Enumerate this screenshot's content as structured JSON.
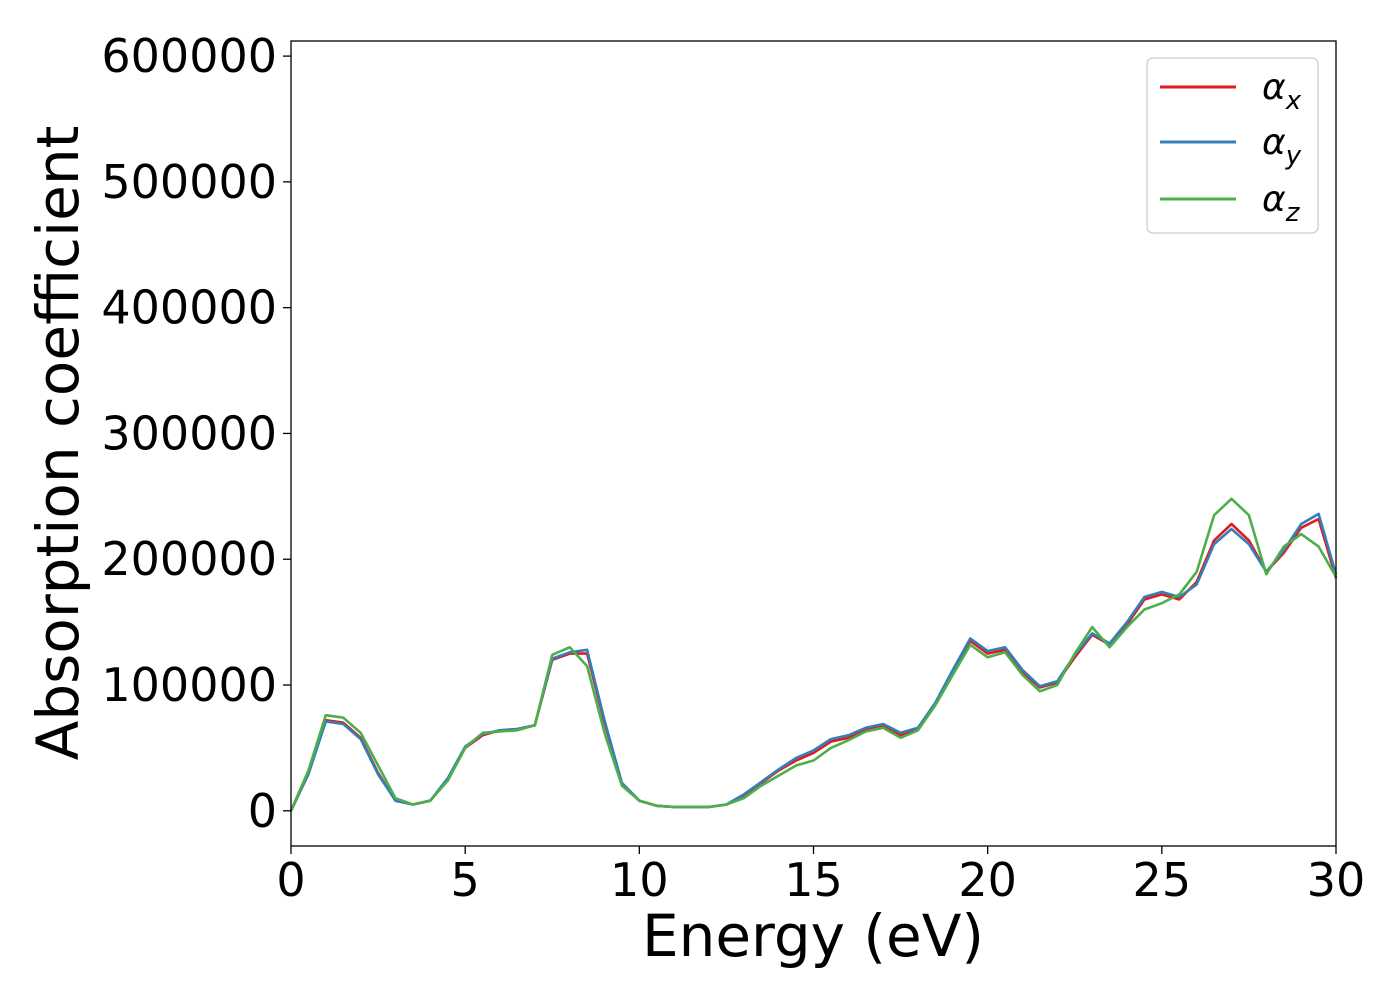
{
  "chart_data": {
    "type": "line",
    "xlabel": "Energy (eV)",
    "ylabel": "Absorption coefficient",
    "xlim": [
      0,
      30
    ],
    "ylim": [
      -28000,
      612000
    ],
    "x_ticks": [
      "0",
      "5",
      "10",
      "15",
      "20",
      "25",
      "30"
    ],
    "y_ticks": [
      "0",
      "100000",
      "200000",
      "300000",
      "400000",
      "500000",
      "600000"
    ],
    "grid": false,
    "legend": "top-right",
    "series": [
      {
        "name": "αx",
        "color": "#e41a1c",
        "x": [
          0,
          0.5,
          1.0,
          1.5,
          2.0,
          2.5,
          3.0,
          3.5,
          4.0,
          4.5,
          5.0,
          5.5,
          6.0,
          6.5,
          7.0,
          7.5,
          8.0,
          8.5,
          9.0,
          9.5,
          10.0,
          10.5,
          11.0,
          11.5,
          12.0,
          12.5,
          13.0,
          13.5,
          14.0,
          14.5,
          15.0,
          15.5,
          16.0,
          16.5,
          17.0,
          17.5,
          18.0,
          18.5,
          19.0,
          19.5,
          20.0,
          20.5,
          21.0,
          21.5,
          22.0,
          22.5,
          23.0,
          23.5,
          24.0,
          24.5,
          25.0,
          25.5,
          26.0,
          26.5,
          27.0,
          27.5,
          28.0,
          28.5,
          29.0,
          29.5,
          30.0
        ],
        "y": [
          0,
          30000,
          72000,
          70000,
          58000,
          30000,
          8000,
          5000,
          8000,
          25000,
          50000,
          60000,
          64000,
          65000,
          68000,
          120000,
          125000,
          125000,
          70000,
          22000,
          8000,
          4000,
          3000,
          3000,
          3000,
          5000,
          12000,
          22000,
          32000,
          40000,
          46000,
          55000,
          58000,
          65000,
          68000,
          60000,
          65000,
          85000,
          110000,
          135000,
          125000,
          128000,
          110000,
          98000,
          102000,
          122000,
          140000,
          132000,
          148000,
          168000,
          172000,
          168000,
          182000,
          215000,
          228000,
          215000,
          190000,
          205000,
          225000,
          232000,
          185000
        ]
      },
      {
        "name": "αy",
        "color": "#377eb8",
        "x": [
          0,
          0.5,
          1.0,
          1.5,
          2.0,
          2.5,
          3.0,
          3.5,
          4.0,
          4.5,
          5.0,
          5.5,
          6.0,
          6.5,
          7.0,
          7.5,
          8.0,
          8.5,
          9.0,
          9.5,
          10.0,
          10.5,
          11.0,
          11.5,
          12.0,
          12.5,
          13.0,
          13.5,
          14.0,
          14.5,
          15.0,
          15.5,
          16.0,
          16.5,
          17.0,
          17.5,
          18.0,
          18.5,
          19.0,
          19.5,
          20.0,
          20.5,
          21.0,
          21.5,
          22.0,
          22.5,
          23.0,
          23.5,
          24.0,
          24.5,
          25.0,
          25.5,
          26.0,
          26.5,
          27.0,
          27.5,
          28.0,
          28.5,
          29.0,
          29.5,
          30.0
        ],
        "y": [
          0,
          29000,
          71000,
          69000,
          57000,
          29000,
          8000,
          5000,
          8000,
          26000,
          51000,
          61000,
          64000,
          65000,
          68000,
          121000,
          126000,
          128000,
          72000,
          22000,
          8000,
          4000,
          3000,
          3000,
          3000,
          5000,
          13000,
          23000,
          33000,
          42000,
          48000,
          57000,
          60000,
          66000,
          69000,
          62000,
          66000,
          86000,
          112000,
          137000,
          127000,
          130000,
          112000,
          99000,
          103000,
          124000,
          141000,
          133000,
          150000,
          170000,
          174000,
          170000,
          180000,
          212000,
          224000,
          212000,
          190000,
          207000,
          228000,
          236000,
          188000
        ]
      },
      {
        "name": "αz",
        "color": "#4daf4a",
        "x": [
          0,
          0.5,
          1.0,
          1.5,
          2.0,
          2.5,
          3.0,
          3.5,
          4.0,
          4.5,
          5.0,
          5.5,
          6.0,
          6.5,
          7.0,
          7.5,
          8.0,
          8.5,
          9.0,
          9.5,
          10.0,
          10.5,
          11.0,
          11.5,
          12.0,
          12.5,
          13.0,
          13.5,
          14.0,
          14.5,
          15.0,
          15.5,
          16.0,
          16.5,
          17.0,
          17.5,
          18.0,
          18.5,
          19.0,
          19.5,
          20.0,
          20.5,
          21.0,
          21.5,
          22.0,
          22.5,
          23.0,
          23.5,
          24.0,
          24.5,
          25.0,
          25.5,
          26.0,
          26.5,
          27.0,
          27.5,
          28.0,
          28.5,
          29.0,
          29.5,
          30.0
        ],
        "y": [
          0,
          32000,
          76000,
          74000,
          62000,
          36000,
          10000,
          5000,
          8000,
          24000,
          50000,
          62000,
          63000,
          64000,
          68000,
          124000,
          130000,
          115000,
          62000,
          20000,
          8000,
          4000,
          3000,
          3000,
          3000,
          5000,
          10000,
          20000,
          28000,
          36000,
          40000,
          50000,
          56000,
          63000,
          66000,
          58000,
          64000,
          84000,
          108000,
          132000,
          122000,
          126000,
          108000,
          95000,
          100000,
          125000,
          146000,
          130000,
          146000,
          160000,
          165000,
          172000,
          190000,
          235000,
          248000,
          235000,
          188000,
          210000,
          220000,
          210000,
          186000
        ]
      }
    ]
  }
}
